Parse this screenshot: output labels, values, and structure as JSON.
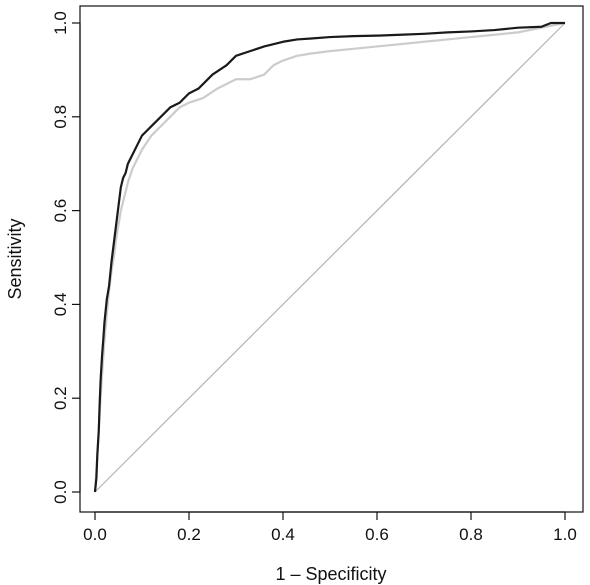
{
  "chart_data": {
    "type": "line",
    "title": "",
    "xlabel": "1 – Specificity",
    "ylabel": "Sensitivity",
    "xlim": [
      0.0,
      1.0
    ],
    "ylim": [
      0.0,
      1.0
    ],
    "x_ticks": [
      "0.0",
      "0.2",
      "0.4",
      "0.6",
      "0.8",
      "1.0"
    ],
    "y_ticks": [
      "0.0",
      "0.2",
      "0.4",
      "0.6",
      "0.8",
      "1.0"
    ],
    "grid": false,
    "legend": "none",
    "reference_line": {
      "x": [
        0,
        1
      ],
      "y": [
        0,
        1
      ],
      "color": "#b3b3b3"
    },
    "series": [
      {
        "color": "#1a1a1a",
        "x": [
          0.0,
          0.003,
          0.005,
          0.008,
          0.01,
          0.012,
          0.015,
          0.018,
          0.02,
          0.025,
          0.03,
          0.035,
          0.04,
          0.045,
          0.05,
          0.055,
          0.06,
          0.065,
          0.07,
          0.08,
          0.09,
          0.1,
          0.11,
          0.12,
          0.14,
          0.16,
          0.18,
          0.2,
          0.22,
          0.25,
          0.28,
          0.3,
          0.33,
          0.36,
          0.4,
          0.43,
          0.46,
          0.5,
          0.55,
          0.6,
          0.65,
          0.7,
          0.75,
          0.8,
          0.85,
          0.9,
          0.95,
          0.97,
          1.0
        ],
        "y": [
          0.0,
          0.03,
          0.08,
          0.13,
          0.19,
          0.24,
          0.29,
          0.33,
          0.36,
          0.41,
          0.44,
          0.49,
          0.53,
          0.57,
          0.61,
          0.65,
          0.67,
          0.68,
          0.7,
          0.72,
          0.74,
          0.76,
          0.77,
          0.78,
          0.8,
          0.82,
          0.83,
          0.85,
          0.86,
          0.89,
          0.91,
          0.93,
          0.94,
          0.95,
          0.96,
          0.965,
          0.967,
          0.97,
          0.972,
          0.973,
          0.975,
          0.977,
          0.98,
          0.982,
          0.985,
          0.99,
          0.992,
          1.0,
          1.0
        ]
      },
      {
        "color": "#cccccc",
        "x": [
          0.0,
          0.005,
          0.01,
          0.015,
          0.02,
          0.025,
          0.03,
          0.035,
          0.04,
          0.045,
          0.05,
          0.055,
          0.06,
          0.065,
          0.07,
          0.08,
          0.09,
          0.1,
          0.11,
          0.12,
          0.14,
          0.16,
          0.18,
          0.2,
          0.23,
          0.26,
          0.28,
          0.3,
          0.33,
          0.36,
          0.38,
          0.4,
          0.43,
          0.46,
          0.5,
          0.55,
          0.6,
          0.65,
          0.7,
          0.75,
          0.8,
          0.85,
          0.9,
          0.95,
          1.0
        ],
        "y": [
          0.0,
          0.08,
          0.17,
          0.25,
          0.32,
          0.38,
          0.43,
          0.47,
          0.5,
          0.54,
          0.57,
          0.6,
          0.62,
          0.64,
          0.66,
          0.69,
          0.71,
          0.73,
          0.745,
          0.76,
          0.78,
          0.8,
          0.82,
          0.83,
          0.84,
          0.86,
          0.87,
          0.88,
          0.88,
          0.89,
          0.91,
          0.92,
          0.93,
          0.935,
          0.94,
          0.945,
          0.95,
          0.955,
          0.96,
          0.965,
          0.97,
          0.975,
          0.98,
          0.99,
          1.0
        ]
      }
    ]
  }
}
